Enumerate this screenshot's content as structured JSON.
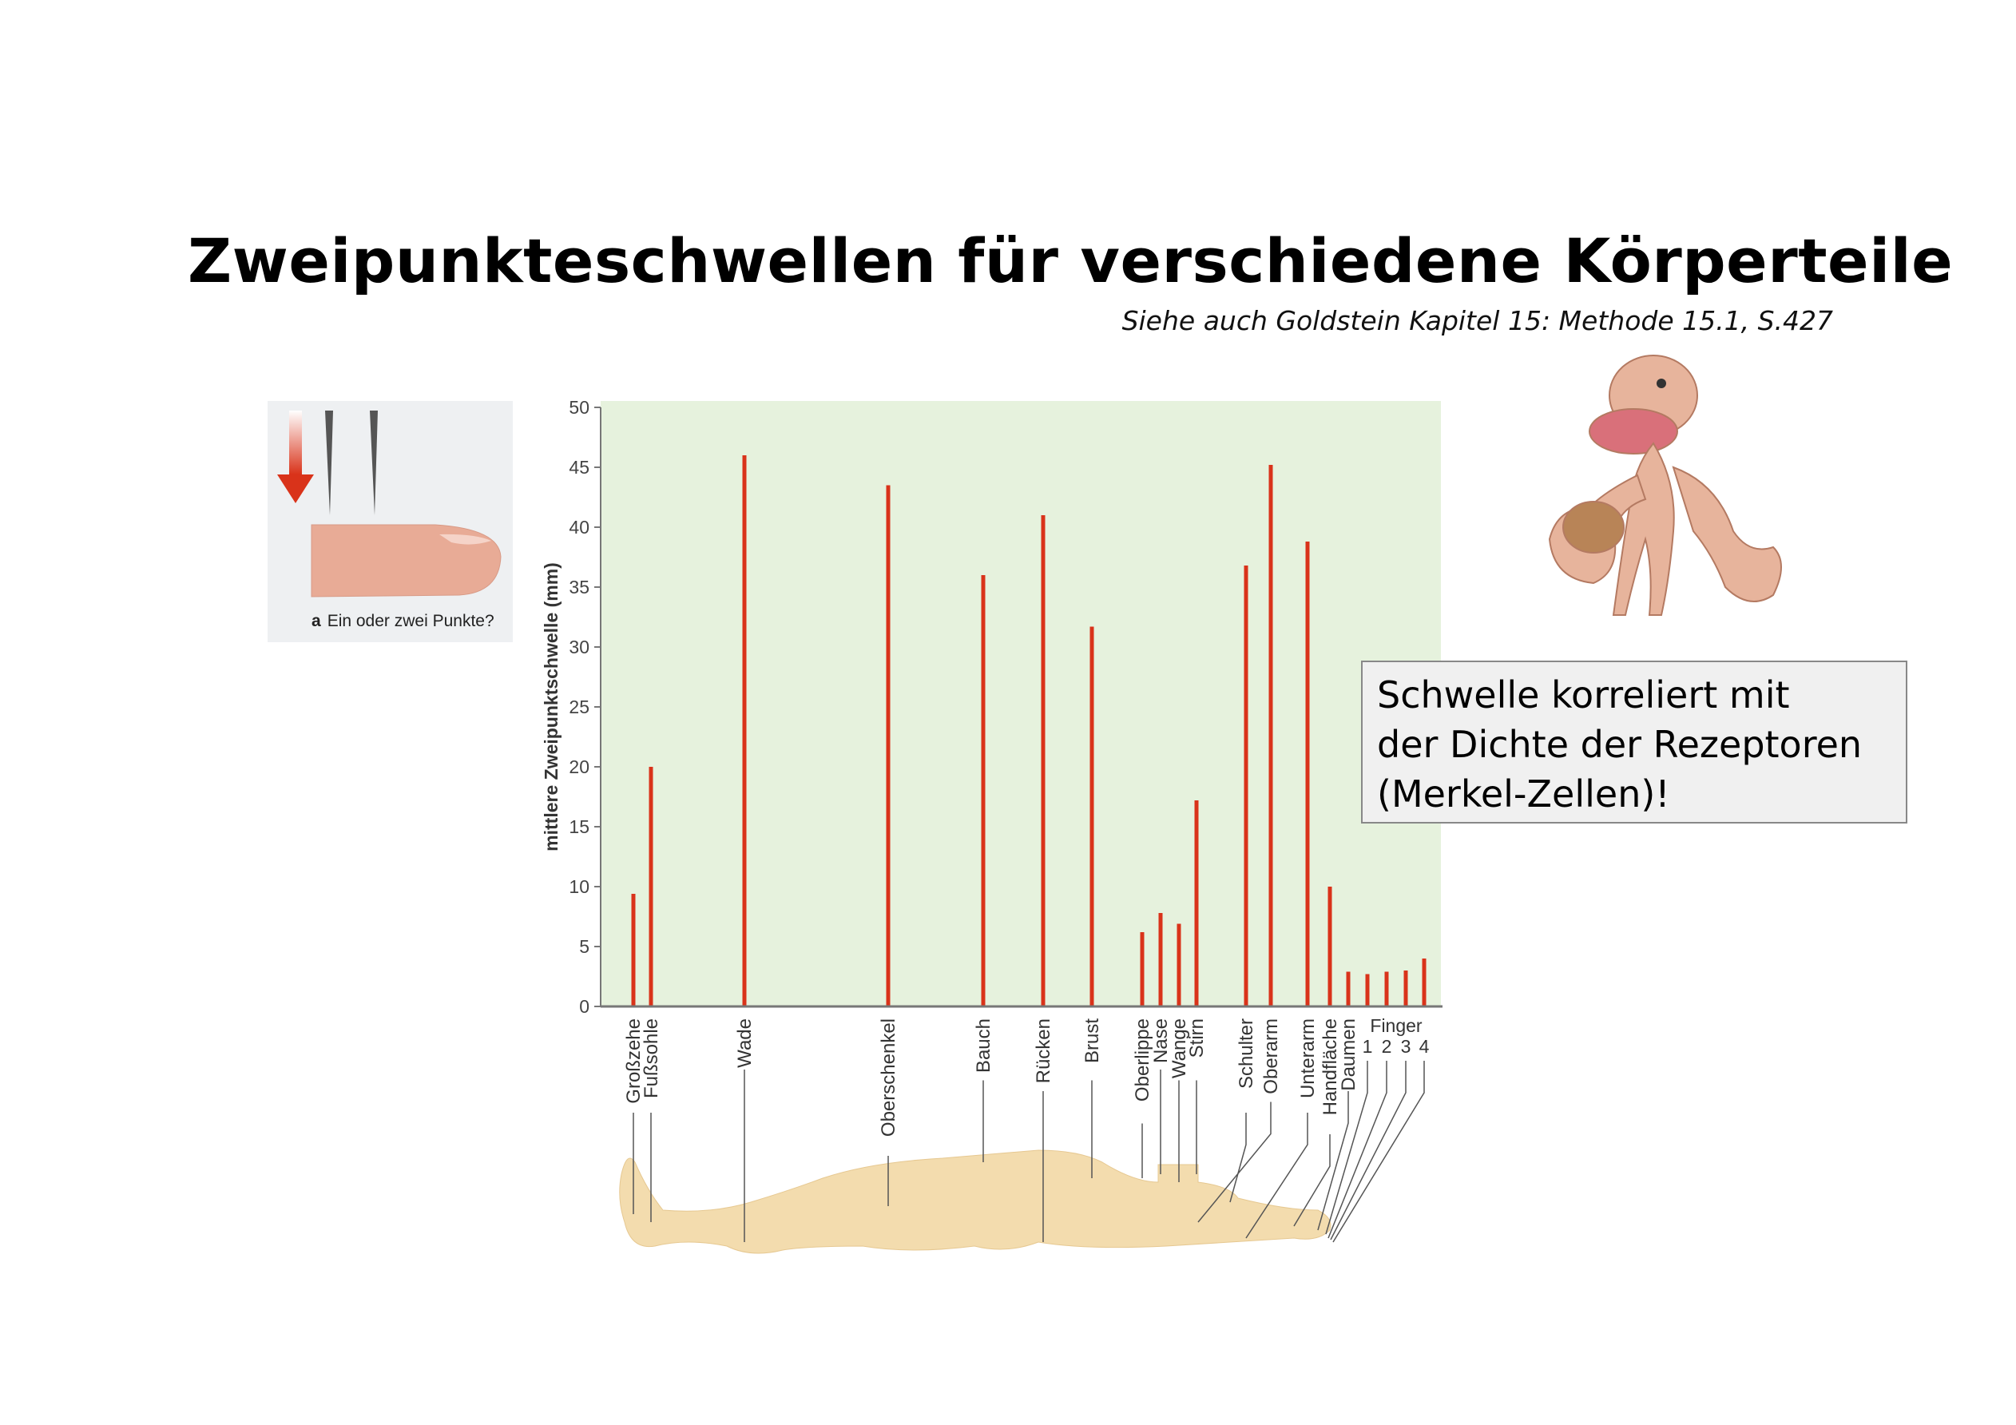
{
  "title": "Zweipunkteschwellen für verschiedene Körperteile",
  "subtitle": "Siehe auch Goldstein Kapitel 15: Methode 15.1, S.427",
  "finger_figure": {
    "label_letter": "a",
    "caption": "Ein oder zwei Punkte?"
  },
  "callout": {
    "lines": [
      "Schwelle korreliert mit",
      "der Dichte der Rezeptoren",
      "(Merkel-Zellen)!"
    ]
  },
  "colors": {
    "bar": "#d9331a",
    "plot_background": "#e6f2dd",
    "body": "#f3dcae",
    "callout_bg": "#f0f0f0"
  },
  "chart_data": {
    "type": "bar",
    "title": "",
    "ylabel": "mittlere Zweipunktschwelle (mm)",
    "xlabel": "",
    "ylim": [
      0,
      50
    ],
    "yticks": [
      0,
      5,
      10,
      15,
      20,
      25,
      30,
      35,
      40,
      45,
      50
    ],
    "finger_group_label": "Finger",
    "categories": [
      "Großzehe",
      "Fußsohle",
      "Wade",
      "Oberschenkel",
      "Bauch",
      "Rücken",
      "Brust",
      "Oberlippe",
      "Nase",
      "Wange",
      "Stirn",
      "Schulter",
      "Oberarm",
      "Unterarm",
      "Handfläche",
      "Daumen",
      "1",
      "2",
      "3",
      "4"
    ],
    "values": [
      9.4,
      20,
      46,
      43.5,
      36,
      41,
      31.7,
      6.2,
      7.8,
      6.9,
      17.2,
      36.8,
      45.2,
      38.8,
      10,
      2.9,
      2.7,
      2.9,
      3.0,
      4.0
    ]
  }
}
